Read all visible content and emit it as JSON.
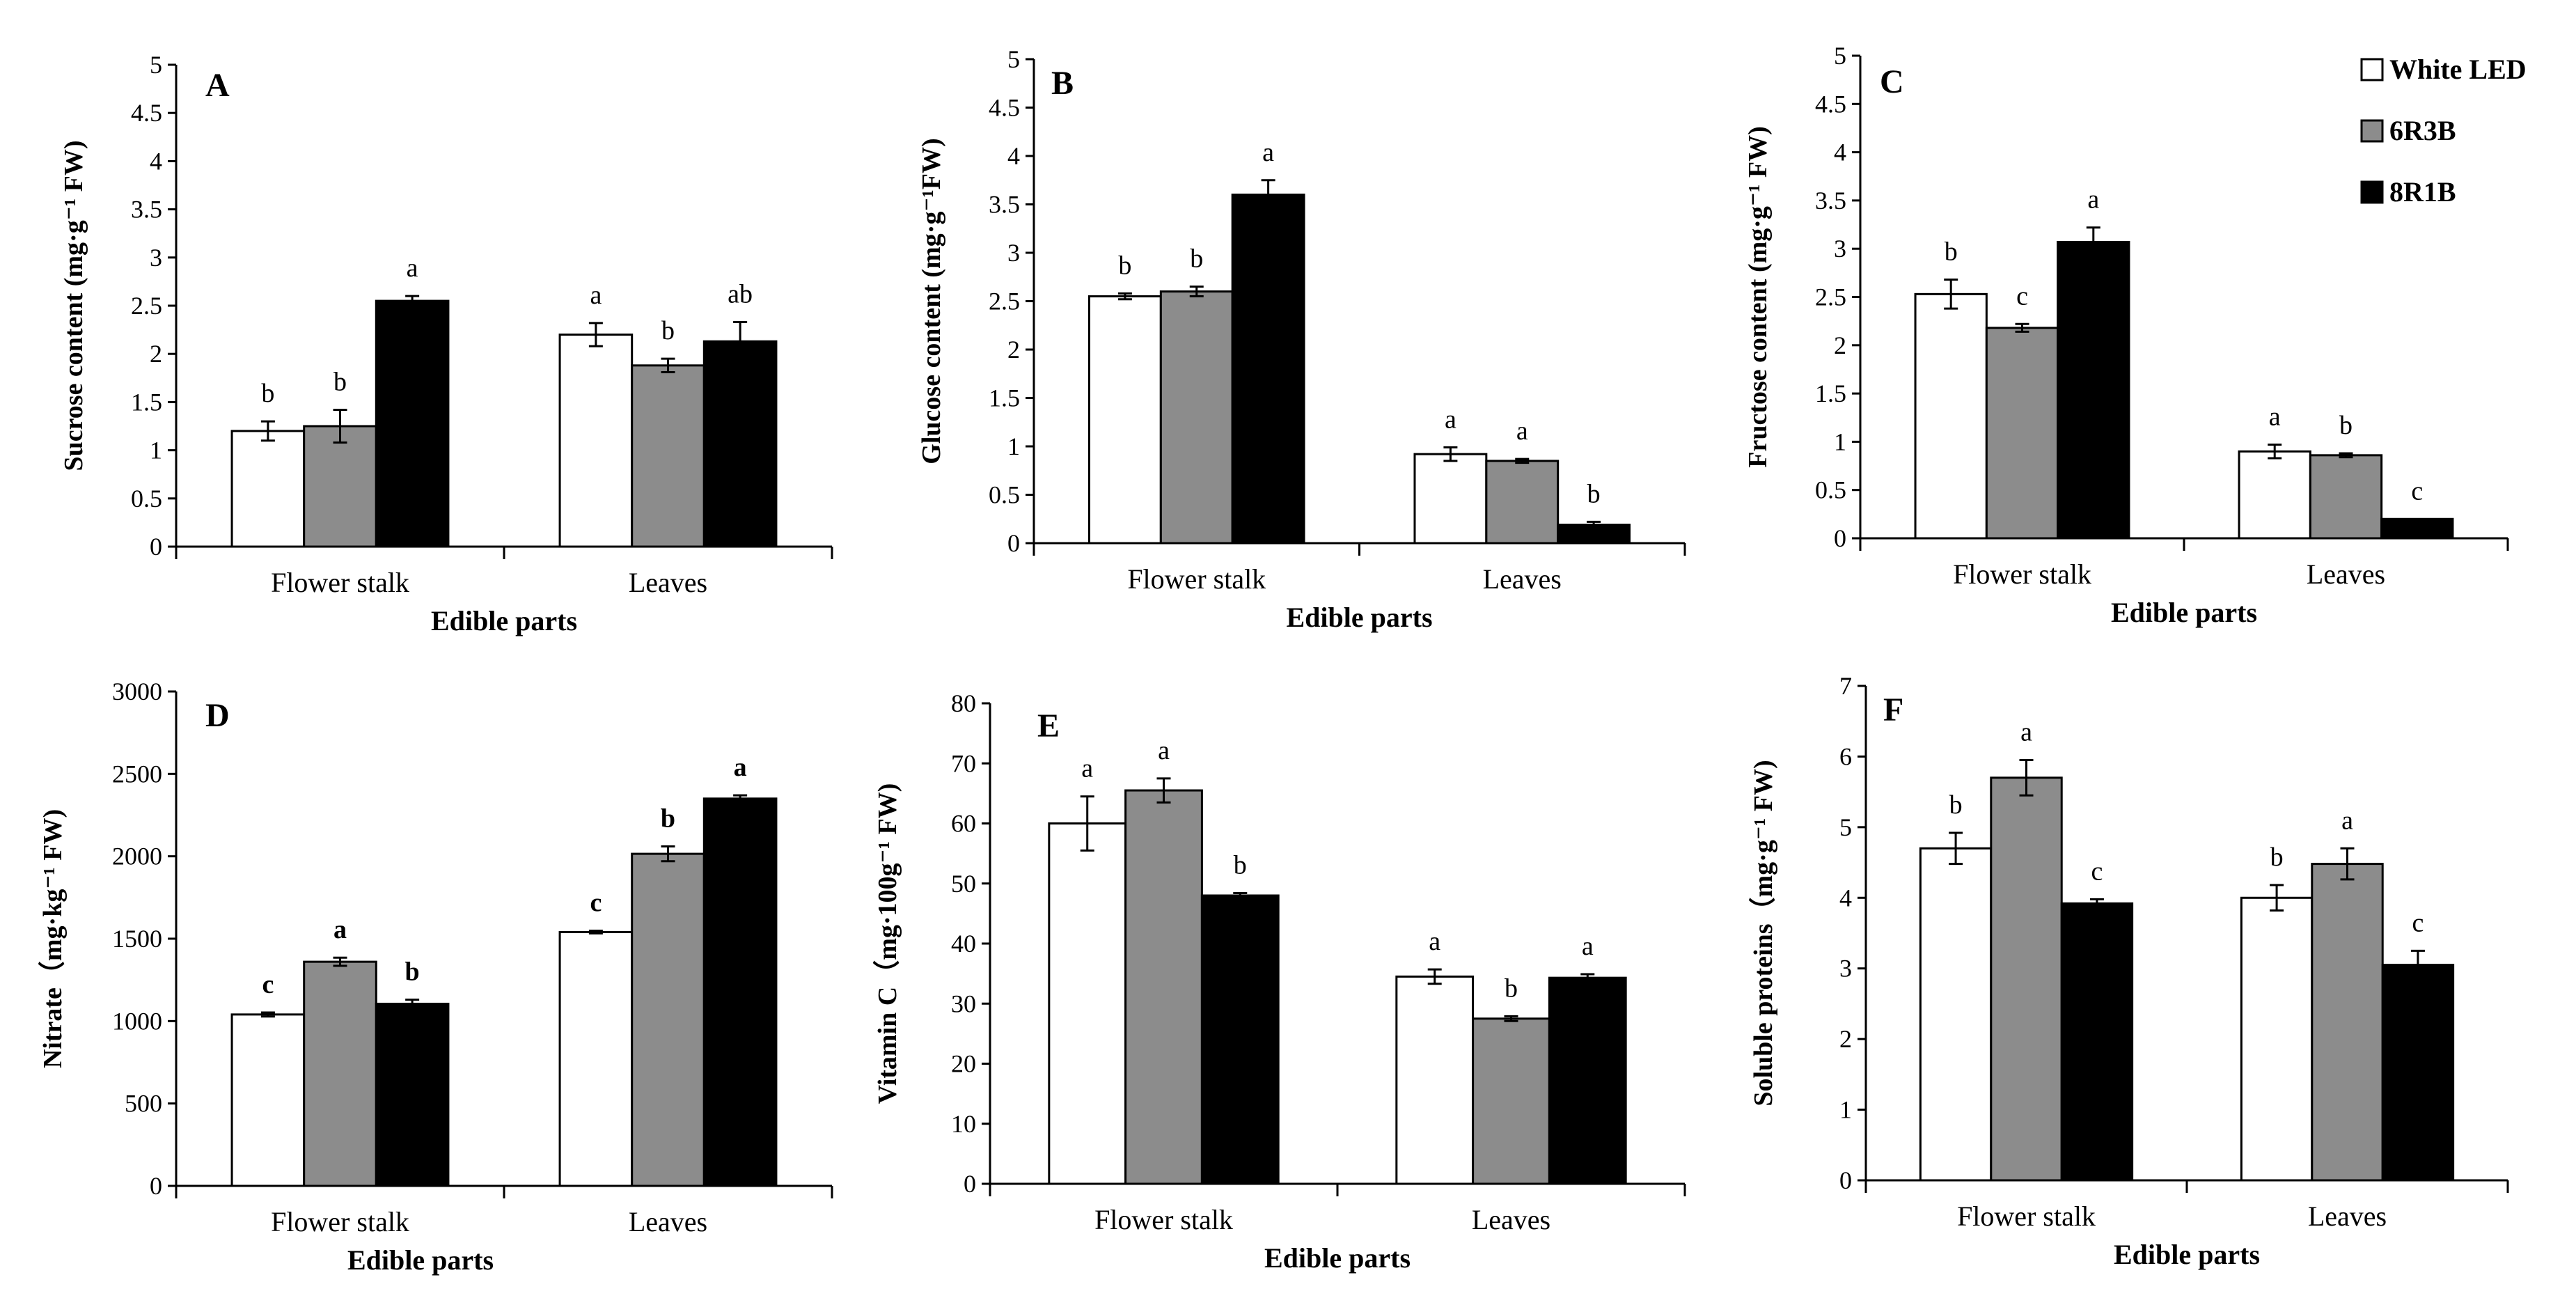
{
  "legend": [
    {
      "label": "White LED",
      "color": "#ffffff"
    },
    {
      "label": "6R3B",
      "color": "#8c8c8c"
    },
    {
      "label": "8R1B",
      "color": "#000000"
    }
  ],
  "chart_data": [
    {
      "type": "bar",
      "panel": "A",
      "title": "",
      "xlabel": "Edible parts",
      "ylabel": "Sucrose content (mg·g⁻¹ FW)",
      "ylim": [
        0,
        5
      ],
      "yticks": [
        "0",
        "0.5",
        "1",
        "1.5",
        "2",
        "2.5",
        "3",
        "3.5",
        "4",
        "4.5",
        "5"
      ],
      "categories": [
        "Flower stalk",
        "Leaves"
      ],
      "series": [
        {
          "name": "White LED",
          "values": [
            1.2,
            2.2
          ],
          "errors": [
            0.1,
            0.12
          ],
          "letters": [
            "b",
            "a"
          ]
        },
        {
          "name": "6R3B",
          "values": [
            1.25,
            1.88
          ],
          "errors": [
            0.17,
            0.07
          ],
          "letters": [
            "b",
            "b"
          ]
        },
        {
          "name": "8R1B",
          "values": [
            2.55,
            2.13
          ],
          "errors": [
            0.05,
            0.2
          ],
          "letters": [
            "a",
            "ab"
          ]
        }
      ]
    },
    {
      "type": "bar",
      "panel": "B",
      "xlabel": "Edible parts",
      "ylabel": "Glucose content (mg·g⁻¹FW)",
      "ylim": [
        0,
        5
      ],
      "yticks": [
        "0",
        "0.5",
        "1",
        "1.5",
        "2",
        "2.5",
        "3",
        "3.5",
        "4",
        "4.5",
        "5"
      ],
      "categories": [
        "Flower stalk",
        "Leaves"
      ],
      "series": [
        {
          "name": "White LED",
          "values": [
            2.55,
            0.92
          ],
          "errors": [
            0.03,
            0.07
          ],
          "letters": [
            "b",
            "a"
          ]
        },
        {
          "name": "6R3B",
          "values": [
            2.6,
            0.85
          ],
          "errors": [
            0.05,
            0.02
          ],
          "letters": [
            "b",
            "a"
          ]
        },
        {
          "name": "8R1B",
          "values": [
            3.6,
            0.19
          ],
          "errors": [
            0.15,
            0.03
          ],
          "letters": [
            "a",
            "b"
          ]
        }
      ]
    },
    {
      "type": "bar",
      "panel": "C",
      "xlabel": "Edible parts",
      "ylabel": "Fructose content (mg·g⁻¹ FW)",
      "ylim": [
        0,
        5
      ],
      "yticks": [
        "0",
        "0.5",
        "1",
        "1.5",
        "2",
        "2.5",
        "3",
        "3.5",
        "4",
        "4.5",
        "5"
      ],
      "categories": [
        "Flower stalk",
        "Leaves"
      ],
      "series": [
        {
          "name": "White LED",
          "values": [
            2.53,
            0.9
          ],
          "errors": [
            0.15,
            0.07
          ],
          "letters": [
            "b",
            "a"
          ]
        },
        {
          "name": "6R3B",
          "values": [
            2.18,
            0.86
          ],
          "errors": [
            0.04,
            0.02
          ],
          "letters": [
            "c",
            "b"
          ]
        },
        {
          "name": "8R1B",
          "values": [
            3.07,
            0.2
          ],
          "errors": [
            0.15,
            0.0
          ],
          "letters": [
            "a",
            "c"
          ]
        }
      ]
    },
    {
      "type": "bar",
      "panel": "D",
      "xlabel": "Edible parts",
      "ylabel": "Nitrate（mg·kg⁻¹ FW)",
      "ylim": [
        0,
        3000
      ],
      "yticks": [
        "0",
        "500",
        "1000",
        "1500",
        "2000",
        "2500",
        "3000"
      ],
      "categories": [
        "Flower stalk",
        "Leaves"
      ],
      "series": [
        {
          "name": "White LED",
          "values": [
            1040,
            1540
          ],
          "errors": [
            12,
            8
          ],
          "letters": [
            "c",
            "c"
          ]
        },
        {
          "name": "6R3B",
          "values": [
            1360,
            2015
          ],
          "errors": [
            25,
            45
          ],
          "letters": [
            "a",
            "b"
          ]
        },
        {
          "name": "8R1B",
          "values": [
            1105,
            2350
          ],
          "errors": [
            25,
            20
          ],
          "letters": [
            "b",
            "a"
          ]
        }
      ]
    },
    {
      "type": "bar",
      "panel": "E",
      "xlabel": "Edible parts",
      "ylabel": "Vitamin C（mg·100g⁻¹ FW)",
      "ylim": [
        0,
        80
      ],
      "yticks": [
        "0",
        "10",
        "20",
        "30",
        "40",
        "50",
        "60",
        "70",
        "80"
      ],
      "categories": [
        "Flower stalk",
        "Leaves"
      ],
      "series": [
        {
          "name": "White LED",
          "values": [
            60,
            34.5
          ],
          "errors": [
            4.5,
            1.2
          ],
          "letters": [
            "a",
            "a"
          ]
        },
        {
          "name": "6R3B",
          "values": [
            65.5,
            27.5
          ],
          "errors": [
            2.0,
            0.4
          ],
          "letters": [
            "a",
            "b"
          ]
        },
        {
          "name": "8R1B",
          "values": [
            48,
            34.3
          ],
          "errors": [
            0.4,
            0.6
          ],
          "letters": [
            "b",
            "a"
          ]
        }
      ]
    },
    {
      "type": "bar",
      "panel": "F",
      "xlabel": "Edible parts",
      "ylabel": "Soluble proteins（mg·g⁻¹ FW)",
      "ylim": [
        0,
        7
      ],
      "yticks": [
        "0",
        "1",
        "2",
        "3",
        "4",
        "5",
        "6",
        "7"
      ],
      "categories": [
        "Flower stalk",
        "Leaves"
      ],
      "series": [
        {
          "name": "White LED",
          "values": [
            4.7,
            4.0
          ],
          "errors": [
            0.22,
            0.18
          ],
          "letters": [
            "b",
            "b"
          ]
        },
        {
          "name": "6R3B",
          "values": [
            5.7,
            4.48
          ],
          "errors": [
            0.25,
            0.22
          ],
          "letters": [
            "a",
            "a"
          ]
        },
        {
          "name": "8R1B",
          "values": [
            3.92,
            3.05
          ],
          "errors": [
            0.06,
            0.2
          ],
          "letters": [
            "c",
            "c"
          ]
        }
      ]
    }
  ]
}
